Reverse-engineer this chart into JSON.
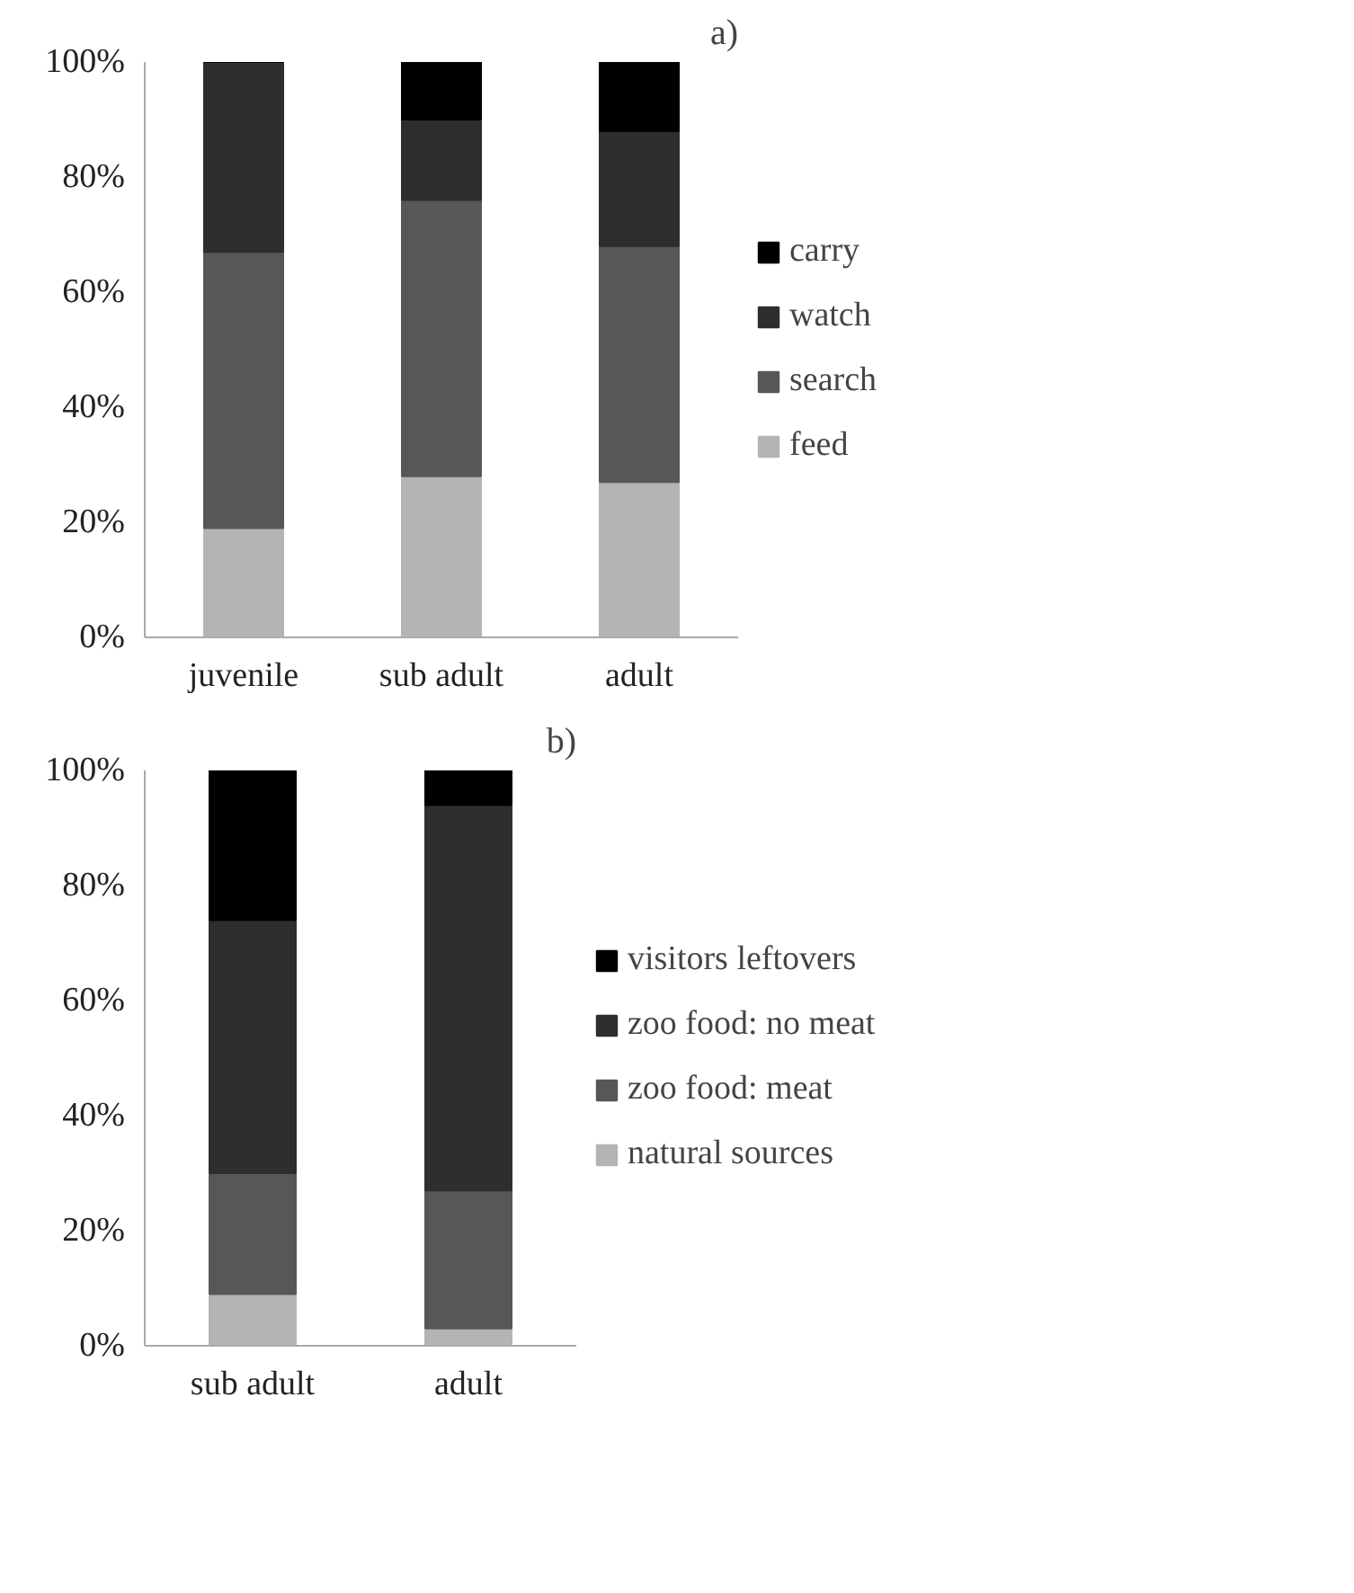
{
  "chart_data": [
    {
      "type": "bar",
      "title": "a)",
      "stacked": true,
      "categories": [
        "juvenile",
        "sub adult",
        "adult"
      ],
      "series": [
        {
          "name": "feed",
          "color": "#b4b4b4",
          "values": [
            19,
            28,
            27
          ]
        },
        {
          "name": "search",
          "color": "#575757",
          "values": [
            48,
            48,
            41
          ]
        },
        {
          "name": "watch",
          "color": "#2e2e2e",
          "values": [
            33,
            14,
            20
          ]
        },
        {
          "name": "carry",
          "color": "#000000",
          "values": [
            0,
            10,
            12
          ]
        }
      ],
      "ylim": [
        0,
        100
      ],
      "yticks": [
        {
          "value": 0,
          "label": "0%"
        },
        {
          "value": 20,
          "label": "20%"
        },
        {
          "value": 40,
          "label": "40%"
        },
        {
          "value": 60,
          "label": "60%"
        },
        {
          "value": 80,
          "label": "80%"
        },
        {
          "value": 100,
          "label": "100%"
        }
      ],
      "grid": false,
      "legend": "right"
    },
    {
      "type": "bar",
      "title": "b)",
      "stacked": true,
      "categories": [
        "sub adult",
        "adult"
      ],
      "series": [
        {
          "name": "natural sources",
          "color": "#b4b4b4",
          "values": [
            9,
            3
          ]
        },
        {
          "name": "zoo food: meat",
          "color": "#575757",
          "values": [
            21,
            24
          ]
        },
        {
          "name": "zoo food: no meat",
          "color": "#2e2e2e",
          "values": [
            44,
            67
          ]
        },
        {
          "name": "visitors leftovers",
          "color": "#000000",
          "values": [
            26,
            6
          ]
        }
      ],
      "ylim": [
        0,
        100
      ],
      "yticks": [
        {
          "value": 0,
          "label": "0%"
        },
        {
          "value": 20,
          "label": "20%"
        },
        {
          "value": 40,
          "label": "40%"
        },
        {
          "value": 60,
          "label": "60%"
        },
        {
          "value": 80,
          "label": "80%"
        },
        {
          "value": 100,
          "label": "100%"
        }
      ],
      "grid": false,
      "legend": "right"
    }
  ]
}
